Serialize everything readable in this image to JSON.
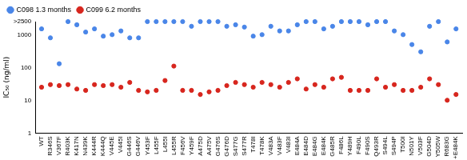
{
  "chart_data": {
    "type": "scatter",
    "y_label": "IC₅₀ (ng/ml)",
    "categories": [
      "WT",
      "R346S",
      "V367F",
      "R403K",
      "K417N",
      "N439K",
      "K444R",
      "K444Q",
      "V445E",
      "V445I",
      "G446S",
      "G446V",
      "Y453F",
      "L455F",
      "L455I",
      "L455R",
      "F456V",
      "Y459F",
      "A475D",
      "A475V",
      "G476S",
      "G476D",
      "S477G",
      "S477R",
      "T478I",
      "T478K",
      "V483A",
      "V483F",
      "V483I",
      "E484A",
      "E484D",
      "E484G",
      "E484K",
      "G485R",
      "F486L",
      "Y489H",
      "F490L",
      "F490S",
      "Q493R",
      "S494L",
      "S494P",
      "T500I",
      "N501Y",
      "V503F",
      "G504D",
      "Y505W",
      "R683G",
      "+E484K"
    ],
    "series": [
      {
        "name": "C098 1.3 months",
        "color": "#4a86e8",
        "marker": "circle",
        "values": [
          1500,
          800,
          130,
          2500,
          2000,
          1200,
          1500,
          900,
          1000,
          1300,
          800,
          800,
          2500,
          2500,
          2500,
          2500,
          2500,
          1800,
          2500,
          2500,
          2500,
          1800,
          2000,
          1700,
          900,
          1000,
          1800,
          1300,
          1300,
          2000,
          2500,
          2500,
          1500,
          1800,
          2500,
          2500,
          2500,
          2000,
          2500,
          2500,
          1300,
          1000,
          500,
          300,
          1800,
          2500,
          600,
          1500
        ]
      },
      {
        "name": "C099 6.2 months",
        "color": "#d7261e",
        "marker": "circle",
        "values": [
          25,
          30,
          28,
          30,
          22,
          20,
          30,
          28,
          30,
          25,
          35,
          20,
          18,
          20,
          40,
          110,
          20,
          20,
          15,
          18,
          20,
          28,
          35,
          30,
          25,
          35,
          30,
          25,
          35,
          45,
          22,
          30,
          25,
          45,
          50,
          20,
          20,
          20,
          45,
          25,
          30,
          20,
          20,
          25,
          45,
          30,
          10,
          15
        ]
      }
    ],
    "log": "y",
    "ylim": [
      1,
      2500
    ],
    "yticks": [
      1,
      10,
      100,
      1000,
      {
        "value": 2500,
        "label": ">2500"
      }
    ],
    "grid": false,
    "legend": "top left"
  }
}
